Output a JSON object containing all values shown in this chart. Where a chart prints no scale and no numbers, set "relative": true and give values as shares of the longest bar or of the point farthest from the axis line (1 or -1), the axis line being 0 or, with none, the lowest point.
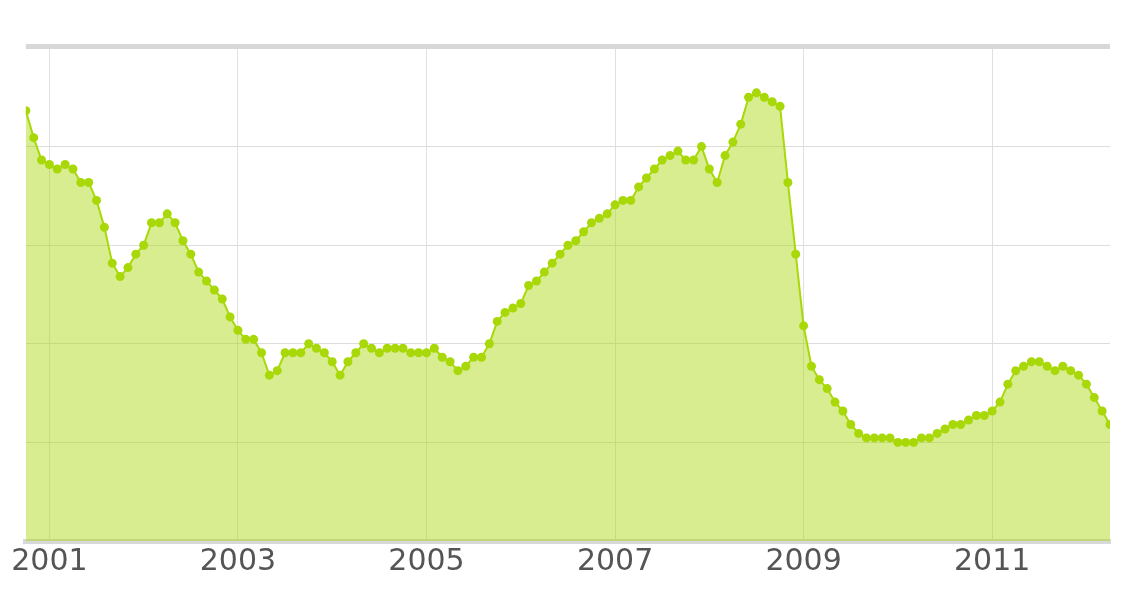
{
  "chart_data": {
    "type": "area",
    "relative": true,
    "grid": true,
    "marker": "circle",
    "xlim": [
      "2000-10",
      "2012-04"
    ],
    "xticks": [
      "2001",
      "2003",
      "2005",
      "2007",
      "2009",
      "2011"
    ],
    "x": [
      "2000-10",
      "2000-11",
      "2000-12",
      "2001-01",
      "2001-02",
      "2001-03",
      "2001-04",
      "2001-05",
      "2001-06",
      "2001-07",
      "2001-08",
      "2001-09",
      "2001-10",
      "2001-11",
      "2001-12",
      "2002-01",
      "2002-02",
      "2002-03",
      "2002-04",
      "2002-05",
      "2002-06",
      "2002-07",
      "2002-08",
      "2002-09",
      "2002-10",
      "2002-11",
      "2002-12",
      "2003-01",
      "2003-02",
      "2003-03",
      "2003-04",
      "2003-05",
      "2003-06",
      "2003-07",
      "2003-08",
      "2003-09",
      "2003-10",
      "2003-11",
      "2003-12",
      "2004-01",
      "2004-02",
      "2004-03",
      "2004-04",
      "2004-05",
      "2004-06",
      "2004-07",
      "2004-08",
      "2004-09",
      "2004-10",
      "2004-11",
      "2004-12",
      "2005-01",
      "2005-02",
      "2005-03",
      "2005-04",
      "2005-05",
      "2005-06",
      "2005-07",
      "2005-08",
      "2005-09",
      "2005-10",
      "2005-11",
      "2005-12",
      "2006-01",
      "2006-02",
      "2006-03",
      "2006-04",
      "2006-05",
      "2006-06",
      "2006-07",
      "2006-08",
      "2006-09",
      "2006-10",
      "2006-11",
      "2006-12",
      "2007-01",
      "2007-02",
      "2007-03",
      "2007-04",
      "2007-05",
      "2007-06",
      "2007-07",
      "2007-08",
      "2007-09",
      "2007-10",
      "2007-11",
      "2007-12",
      "2008-01",
      "2008-02",
      "2008-03",
      "2008-04",
      "2008-05",
      "2008-06",
      "2008-07",
      "2008-08",
      "2008-09",
      "2008-10",
      "2008-11",
      "2008-12",
      "2009-01",
      "2009-02",
      "2009-03",
      "2009-04",
      "2009-05",
      "2009-06",
      "2009-07",
      "2009-08",
      "2009-09",
      "2009-10",
      "2009-11",
      "2009-12",
      "2010-01",
      "2010-02",
      "2010-03",
      "2010-04",
      "2010-05",
      "2010-06",
      "2010-07",
      "2010-08",
      "2010-09",
      "2010-10",
      "2010-11",
      "2010-12",
      "2011-01",
      "2011-02",
      "2011-03",
      "2011-04",
      "2011-05",
      "2011-06",
      "2011-07",
      "2011-08",
      "2011-09",
      "2011-10",
      "2011-11",
      "2011-12",
      "2012-01",
      "2012-02",
      "2012-03",
      "2012-04"
    ],
    "series": [
      {
        "color": "#a8d808",
        "values": [
          0.96,
          0.9,
          0.85,
          0.84,
          0.83,
          0.84,
          0.83,
          0.8,
          0.8,
          0.76,
          0.7,
          0.62,
          0.59,
          0.61,
          0.64,
          0.66,
          0.71,
          0.71,
          0.73,
          0.71,
          0.67,
          0.64,
          0.6,
          0.58,
          0.56,
          0.54,
          0.5,
          0.47,
          0.45,
          0.45,
          0.42,
          0.37,
          0.38,
          0.42,
          0.42,
          0.42,
          0.44,
          0.43,
          0.42,
          0.4,
          0.37,
          0.4,
          0.42,
          0.44,
          0.43,
          0.42,
          0.43,
          0.43,
          0.43,
          0.42,
          0.42,
          0.42,
          0.43,
          0.41,
          0.4,
          0.38,
          0.39,
          0.41,
          0.41,
          0.44,
          0.49,
          0.51,
          0.52,
          0.53,
          0.57,
          0.58,
          0.6,
          0.62,
          0.64,
          0.66,
          0.67,
          0.69,
          0.71,
          0.72,
          0.73,
          0.75,
          0.76,
          0.76,
          0.79,
          0.81,
          0.83,
          0.85,
          0.86,
          0.87,
          0.85,
          0.85,
          0.88,
          0.83,
          0.8,
          0.86,
          0.89,
          0.93,
          0.99,
          1,
          0.99,
          0.98,
          0.97,
          0.8,
          0.64,
          0.48,
          0.39,
          0.36,
          0.34,
          0.31,
          0.29,
          0.26,
          0.24,
          0.23,
          0.23,
          0.23,
          0.23,
          0.22,
          0.22,
          0.22,
          0.23,
          0.23,
          0.24,
          0.25,
          0.26,
          0.26,
          0.27,
          0.28,
          0.28,
          0.29,
          0.31,
          0.35,
          0.38,
          0.39,
          0.4,
          0.4,
          0.39,
          0.38,
          0.39,
          0.38,
          0.37,
          0.35,
          0.32,
          0.29,
          0.26
        ]
      }
    ]
  }
}
